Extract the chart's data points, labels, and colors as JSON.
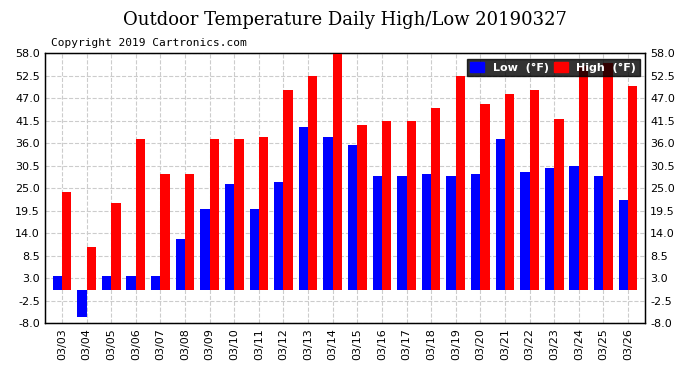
{
  "title": "Outdoor Temperature Daily High/Low 20190327",
  "copyright": "Copyright 2019 Cartronics.com",
  "legend_low": "Low  (°F)",
  "legend_high": "High  (°F)",
  "dates": [
    "03/03",
    "03/04",
    "03/05",
    "03/06",
    "03/07",
    "03/08",
    "03/09",
    "03/10",
    "03/11",
    "03/12",
    "03/13",
    "03/14",
    "03/15",
    "03/16",
    "03/17",
    "03/18",
    "03/19",
    "03/20",
    "03/21",
    "03/22",
    "03/23",
    "03/24",
    "03/25",
    "03/26"
  ],
  "lows": [
    3.5,
    -6.5,
    3.5,
    3.5,
    3.5,
    12.5,
    20.0,
    26.0,
    20.0,
    26.5,
    40.0,
    37.5,
    35.5,
    28.0,
    28.0,
    28.5,
    28.0,
    28.5,
    37.0,
    29.0,
    30.0,
    30.5,
    28.0,
    22.0
  ],
  "highs": [
    24.0,
    10.5,
    21.5,
    37.0,
    28.5,
    28.5,
    37.0,
    37.0,
    37.5,
    49.0,
    52.5,
    58.0,
    40.5,
    41.5,
    41.5,
    44.5,
    52.5,
    45.5,
    48.0,
    49.0,
    42.0,
    55.0,
    55.5,
    50.0
  ],
  "ylim": [
    -8.0,
    58.0
  ],
  "yticks": [
    -8.0,
    -2.5,
    3.0,
    8.5,
    14.0,
    19.5,
    25.0,
    30.5,
    36.0,
    41.5,
    47.0,
    52.5,
    58.0
  ],
  "bar_width": 0.38,
  "low_color": "#0000ff",
  "high_color": "#ff0000",
  "bg_color": "#ffffff",
  "plot_bg_color": "#ffffff",
  "grid_color": "#cccccc",
  "title_fontsize": 13,
  "copyright_fontsize": 8,
  "tick_fontsize": 8
}
